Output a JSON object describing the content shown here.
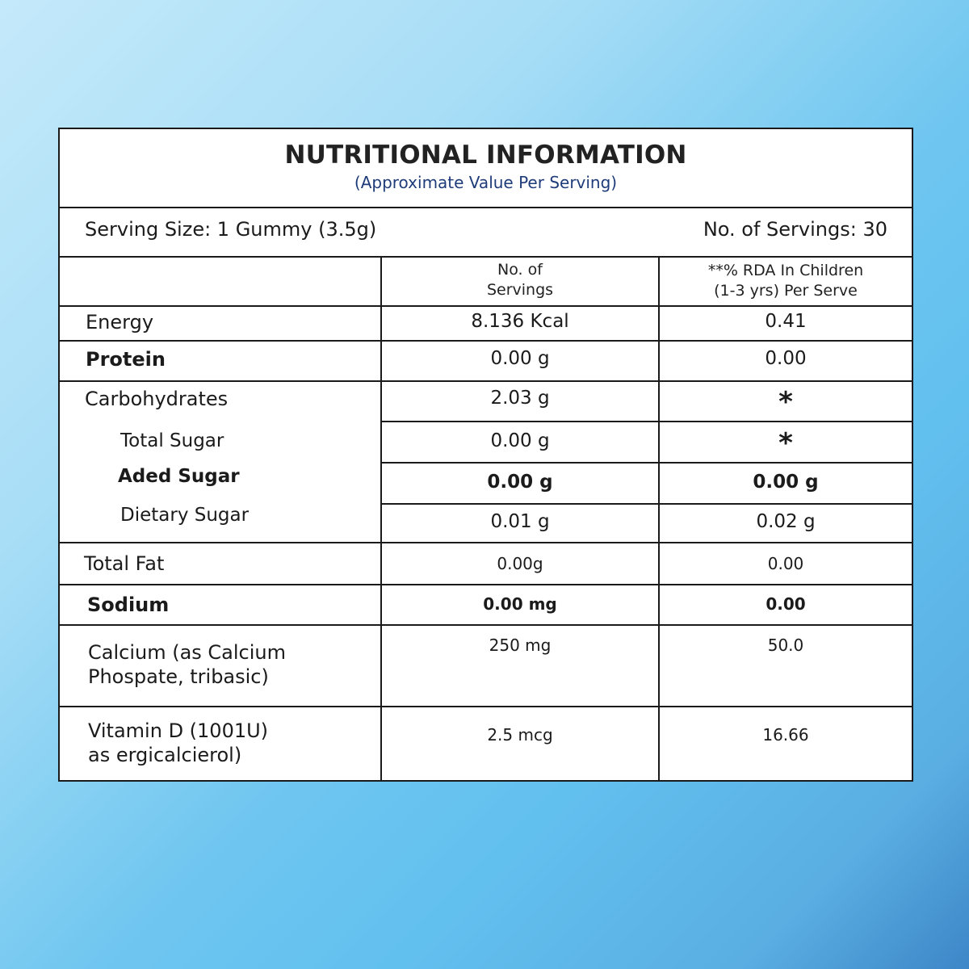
{
  "title": "NUTRITIONAL INFORMATION",
  "subtitle": "(Approximate Value Per Serving)",
  "serving_size": "Serving Size: 1 Gummy (3.5g)",
  "servings_count": "No. of Servings: 30",
  "columns": {
    "col2_line1": "No. of",
    "col2_line2": "Servings",
    "col3_line1": "**% RDA In Children",
    "col3_line2": "(1-3 yrs) Per Serve"
  },
  "rows": {
    "energy": {
      "name": "Energy",
      "amount": "8.136 Kcal",
      "rda": "0.41"
    },
    "protein": {
      "name": "Protein",
      "amount": "0.00 g",
      "rda": "0.00"
    },
    "carbohydrates": {
      "name": "Carbohydrates",
      "amount": "2.03 g",
      "rda": "*"
    },
    "total_sugar": {
      "name": "Total Sugar",
      "amount": "0.00 g",
      "rda": "*"
    },
    "aded_sugar": {
      "name": "Aded Sugar",
      "amount": "0.00 g",
      "rda": "0.00 g"
    },
    "dietary_sugar": {
      "name": "Dietary Sugar",
      "amount": "0.01 g",
      "rda": "0.02 g"
    },
    "total_fat": {
      "name": "Total Fat",
      "amount": "0.00g",
      "rda": "0.00"
    },
    "sodium": {
      "name": "Sodium",
      "amount": "0.00 mg",
      "rda": "0.00"
    },
    "calcium": {
      "name_line1": "Calcium (as Calcium",
      "name_line2": "Phospate, tribasic)",
      "amount": "250 mg",
      "rda": "50.0"
    },
    "vitamin_d": {
      "name_line1": "Vitamin D (1001U)",
      "name_line2": "as ergicalcierol)",
      "amount": "2.5 mcg",
      "rda": "16.66"
    }
  }
}
